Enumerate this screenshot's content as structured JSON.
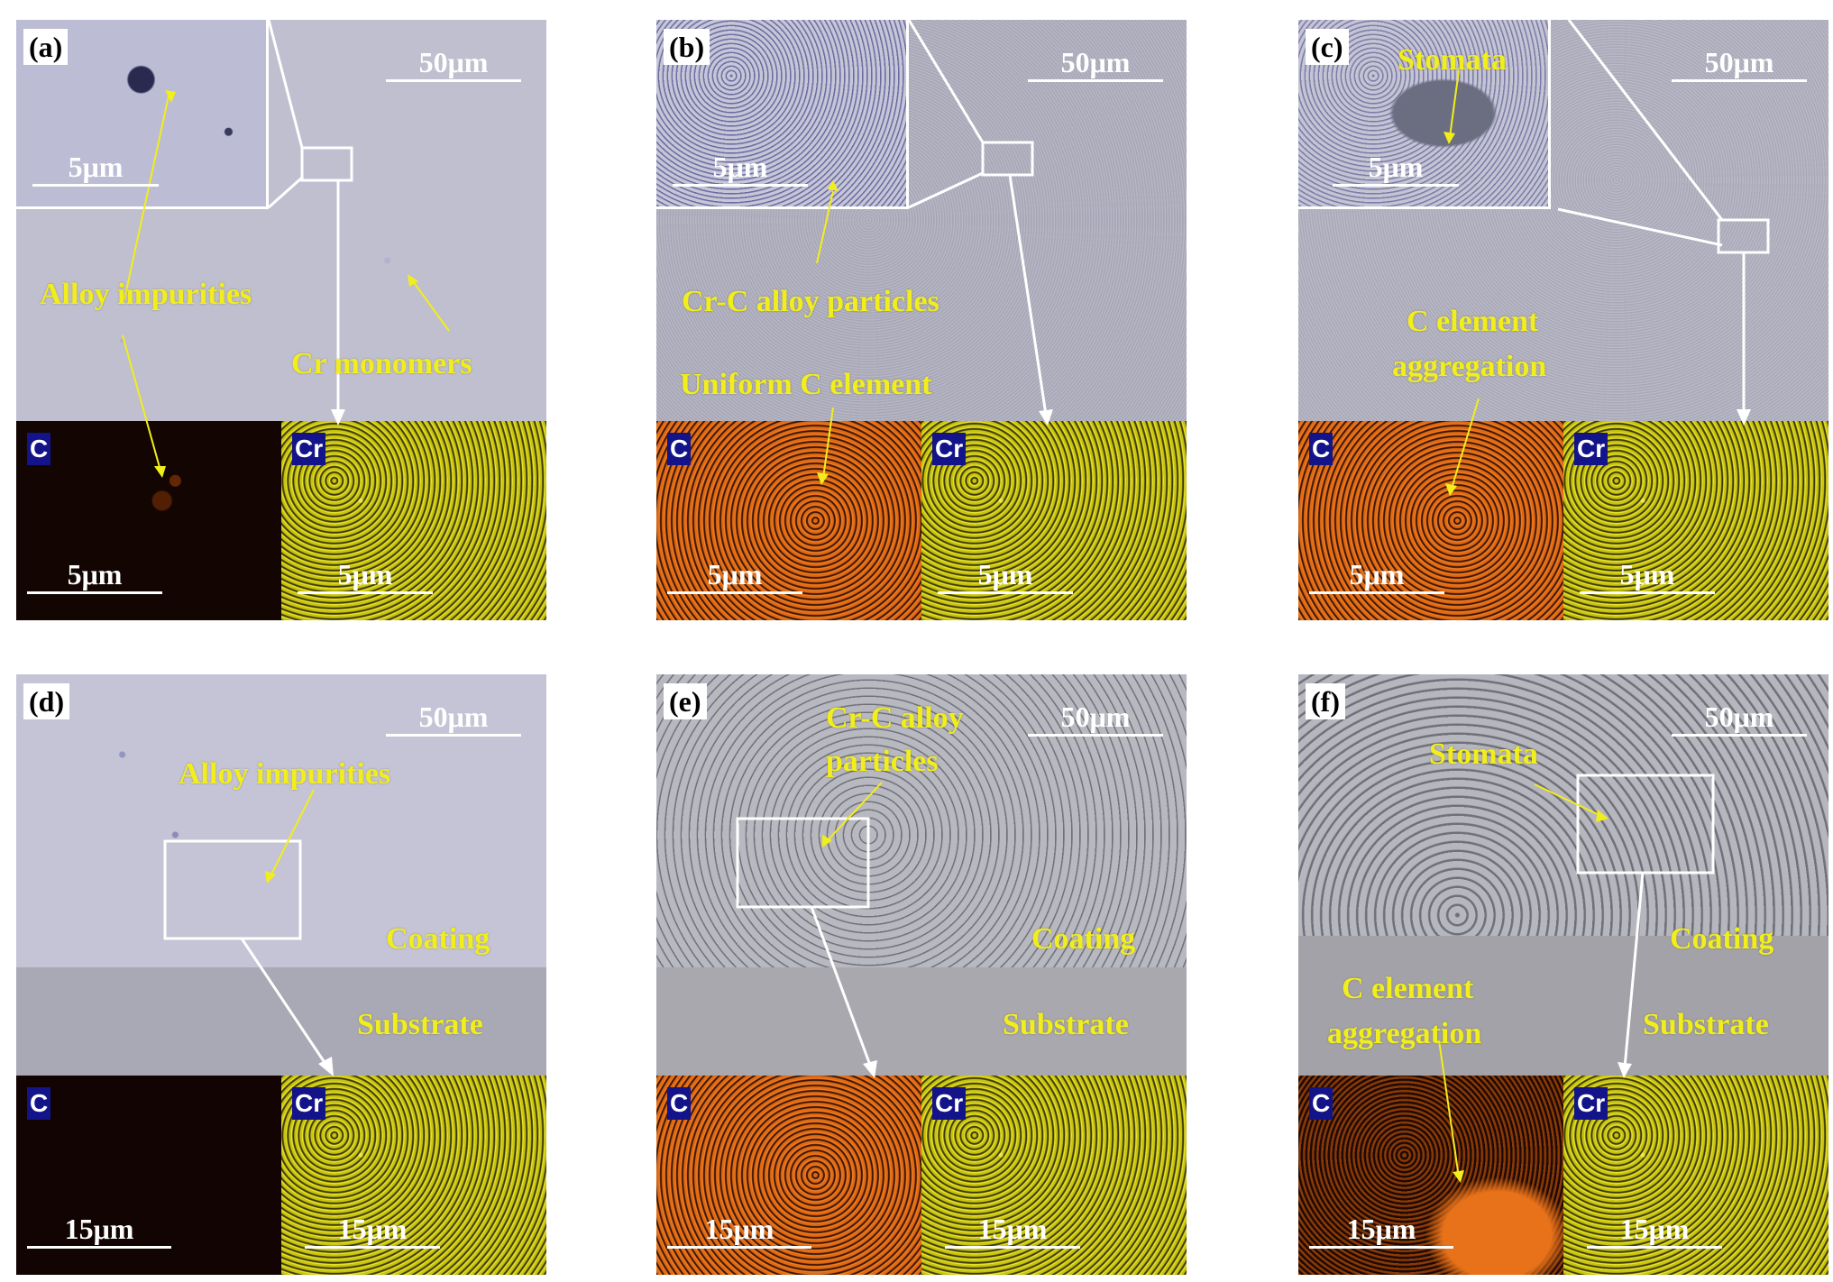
{
  "panels": [
    {
      "id": "a",
      "label": "(a)",
      "scale_main": "50μm",
      "scale_inset": "5μm",
      "scale_c": "5μm",
      "scale_cr": "5μm",
      "annotations": [
        "Alloy impurities",
        "Cr monomers"
      ],
      "elem_c": "C",
      "elem_cr": "Cr"
    },
    {
      "id": "b",
      "label": "(b)",
      "scale_main": "50μm",
      "scale_inset": "5μm",
      "scale_c": "5μm",
      "scale_cr": "5μm",
      "annotations": [
        "Cr-C alloy particles",
        "Uniform C element"
      ],
      "elem_c": "C",
      "elem_cr": "Cr"
    },
    {
      "id": "c",
      "label": "(c)",
      "scale_main": "50μm",
      "scale_inset": "5μm",
      "scale_c": "5μm",
      "scale_cr": "5μm",
      "annotations": [
        "Stomata",
        "C element",
        "aggregation"
      ],
      "elem_c": "C",
      "elem_cr": "Cr"
    },
    {
      "id": "d",
      "label": "(d)",
      "scale_main": "50μm",
      "scale_c": "15μm",
      "scale_cr": "15μm",
      "annotations": [
        "Alloy impurities",
        "Coating",
        "Substrate"
      ],
      "elem_c": "C",
      "elem_cr": "Cr"
    },
    {
      "id": "e",
      "label": "(e)",
      "scale_main": "50μm",
      "scale_c": "15μm",
      "scale_cr": "15μm",
      "annotations": [
        "Cr-C alloy",
        "particles",
        "Coating",
        "Substrate"
      ],
      "elem_c": "C",
      "elem_cr": "Cr"
    },
    {
      "id": "f",
      "label": "(f)",
      "scale_main": "50μm",
      "scale_c": "15μm",
      "scale_cr": "15μm",
      "annotations": [
        "Stomata",
        "Coating",
        "C element",
        "aggregation",
        "Substrate"
      ],
      "elem_c": "C",
      "elem_cr": "Cr"
    }
  ],
  "colors": {
    "annotation": "#f2ee1c",
    "c_map": "#e06a14",
    "cr_map": "#c8c210",
    "element_badge": "#14148a"
  }
}
